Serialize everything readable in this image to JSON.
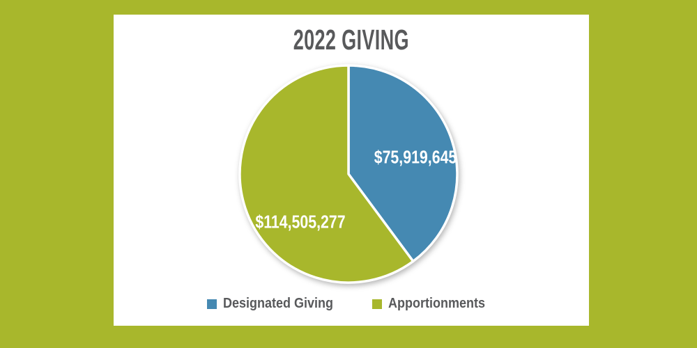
{
  "page": {
    "background_color": "#a8b72c",
    "card_color": "#ffffff",
    "title_color": "#58595b",
    "legend_text_color": "#58595b"
  },
  "chart_data": {
    "type": "pie",
    "title": "2022 GIVING",
    "start_angle_deg": 0,
    "direction": "clockwise",
    "legend_position": "bottom",
    "slice_border_color": "#ffffff",
    "data_label_color": "#ffffff",
    "series": [
      {
        "name": "Designated Giving",
        "value": 75919645,
        "data_label": "$75,919,645",
        "color": "#4589b2"
      },
      {
        "name": "Apportionments",
        "value": 114505277,
        "data_label": "$114,505,277",
        "color": "#a8b72c"
      }
    ]
  }
}
